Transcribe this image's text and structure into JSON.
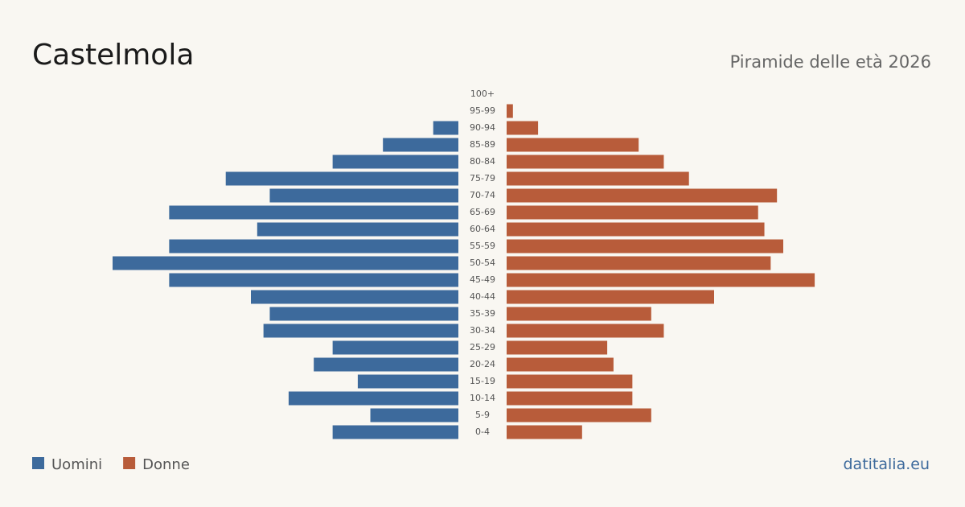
{
  "chart_data": {
    "type": "pyramid",
    "title": "Castelmola",
    "subtitle": "Piramide delle età 2026",
    "source": "datitalia.eu",
    "categories": [
      "100+",
      "95-99",
      "90-94",
      "85-89",
      "80-84",
      "75-79",
      "70-74",
      "65-69",
      "60-64",
      "55-59",
      "50-54",
      "45-49",
      "40-44",
      "35-39",
      "30-34",
      "25-29",
      "20-24",
      "15-19",
      "10-14",
      "5-9",
      "0-4"
    ],
    "series": [
      {
        "name": "Uomini",
        "color": "#3d6a9c",
        "values": [
          0,
          0,
          4,
          12,
          20,
          37,
          30,
          46,
          32,
          46,
          55,
          46,
          33,
          30,
          31,
          20,
          23,
          16,
          27,
          14,
          20
        ]
      },
      {
        "name": "Donne",
        "color": "#b85c3a",
        "values": [
          0,
          1,
          5,
          21,
          25,
          29,
          43,
          40,
          41,
          44,
          42,
          49,
          33,
          23,
          25,
          16,
          17,
          20,
          20,
          23,
          12
        ]
      }
    ]
  }
}
